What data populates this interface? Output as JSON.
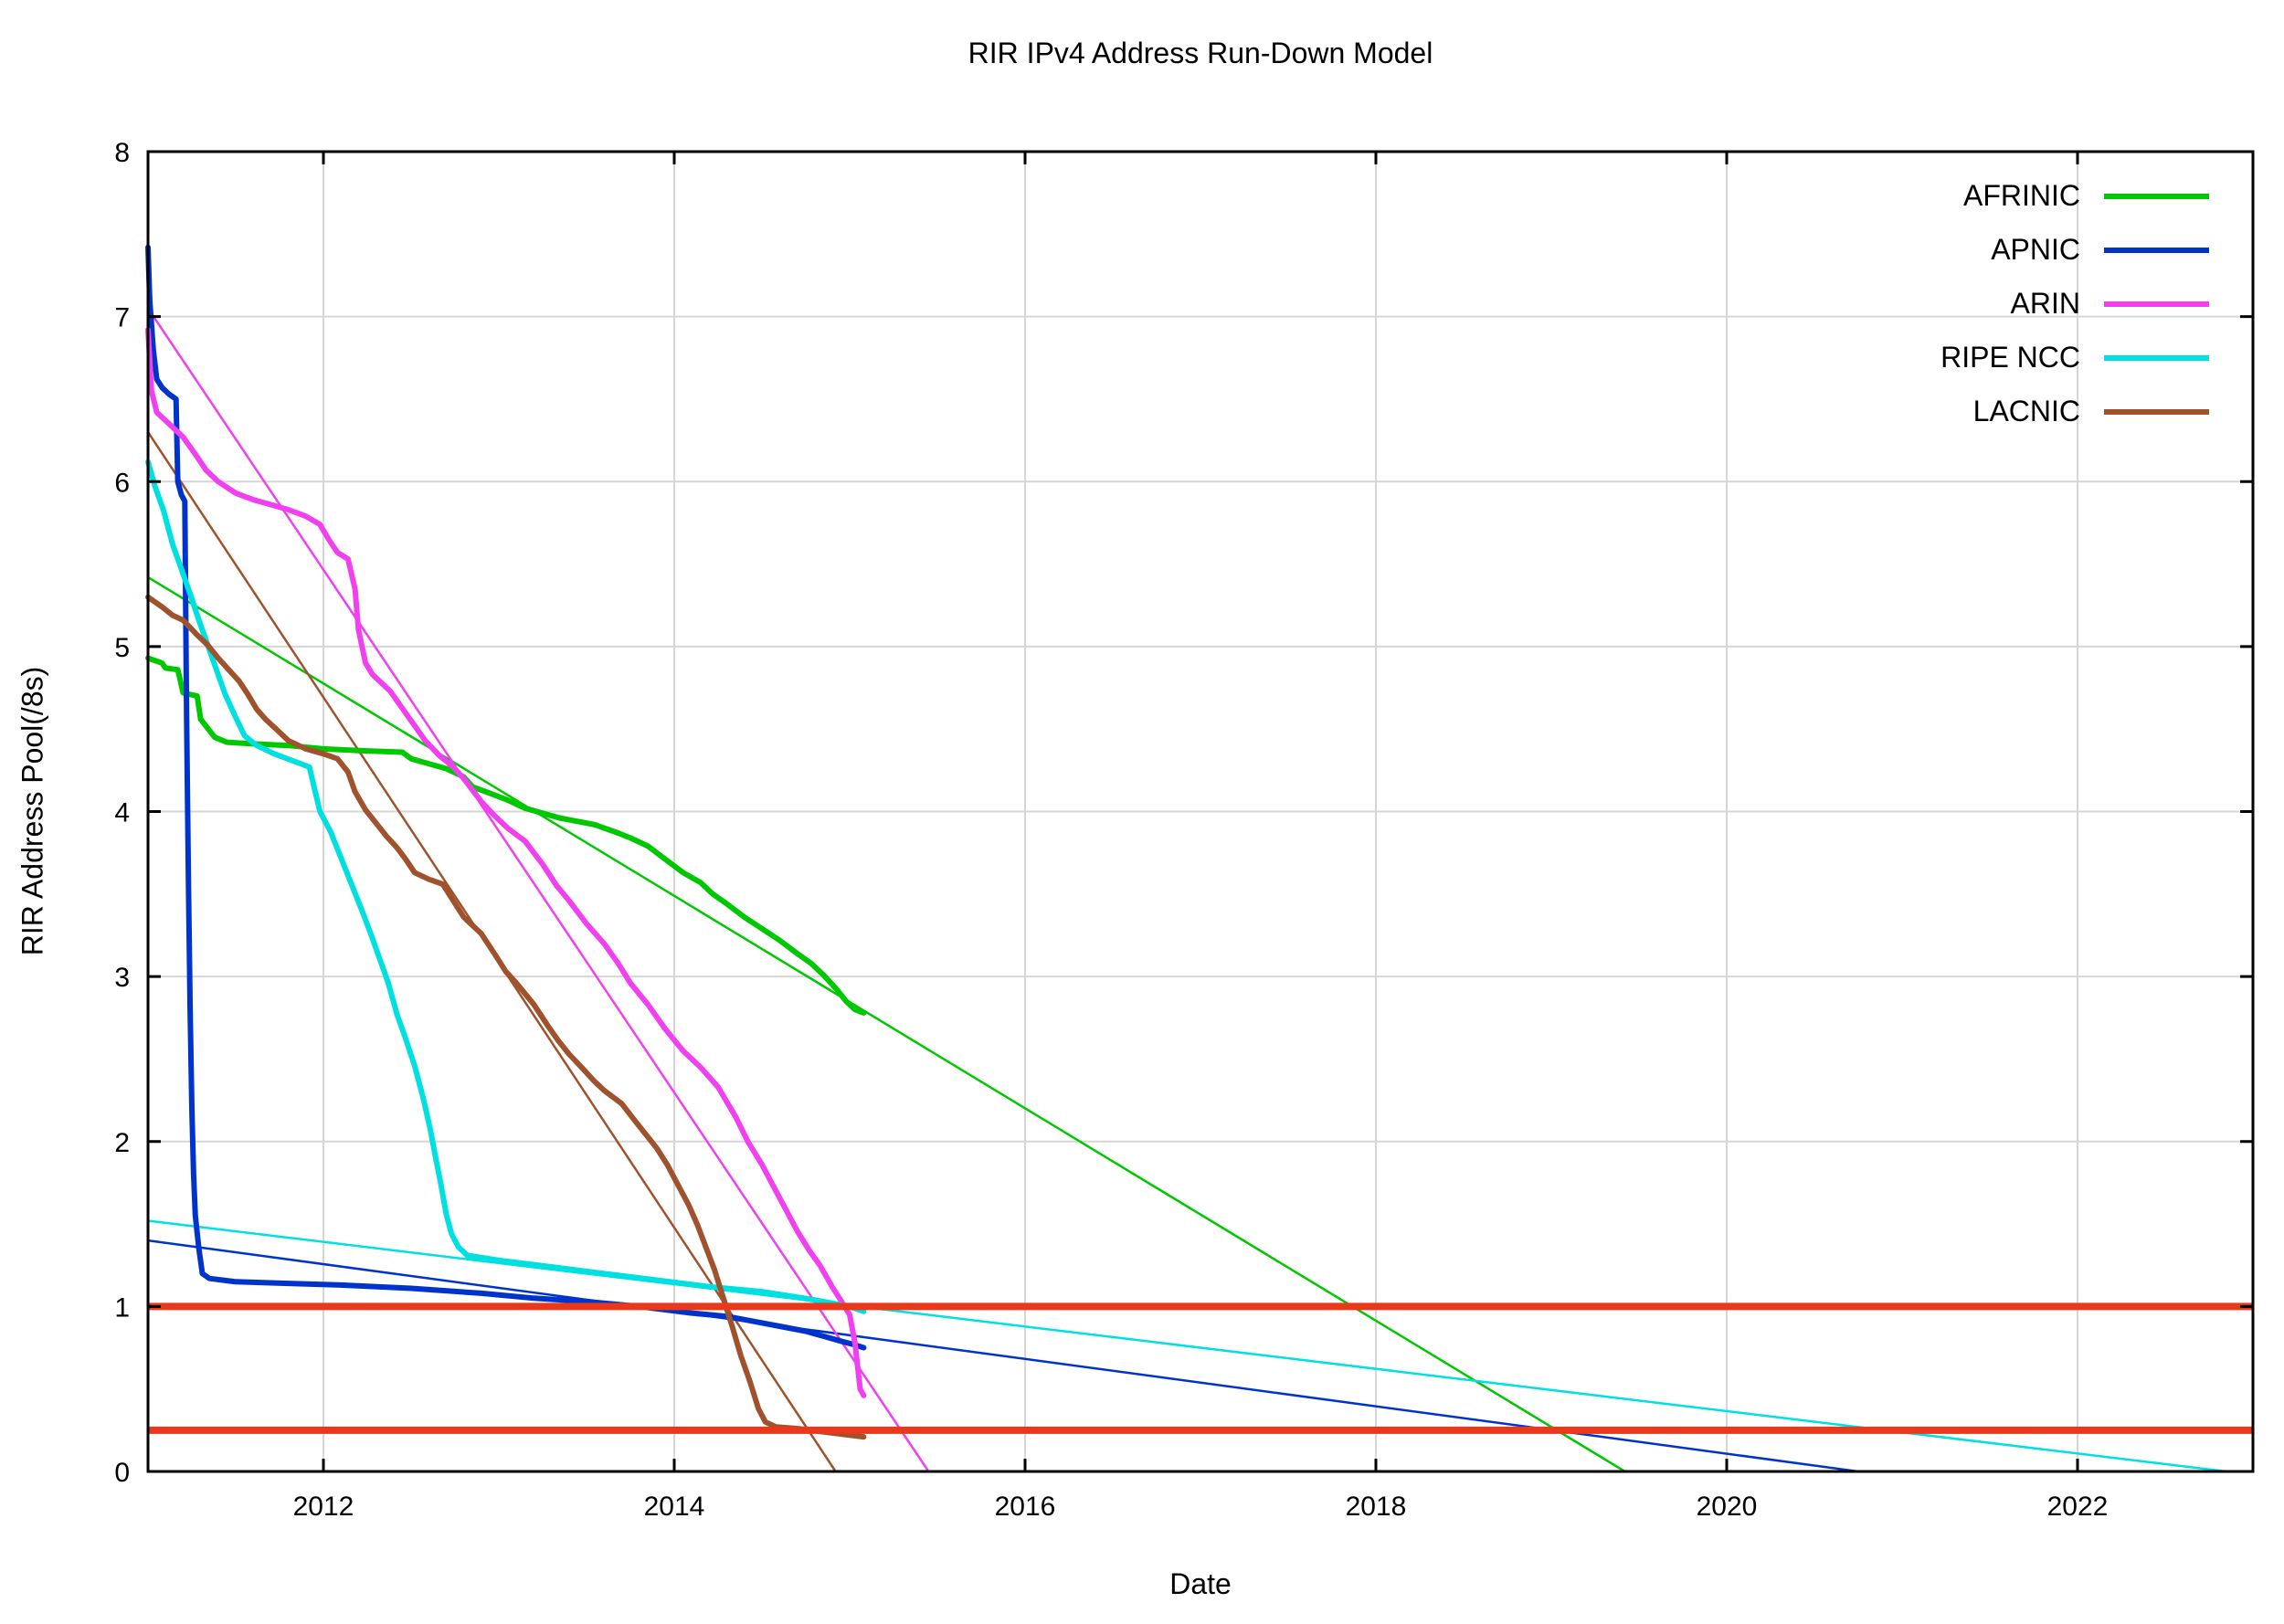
{
  "page": {
    "background": "#ffffff"
  },
  "chart_data": {
    "type": "line",
    "title": "RIR IPv4 Address Run-Down Model",
    "xlabel": "Date",
    "ylabel": "RIR Address Pool(/8s)",
    "xlim": [
      2011,
      2023
    ],
    "ylim": [
      0,
      8
    ],
    "xticks": [
      2012,
      2014,
      2016,
      2018,
      2020,
      2022
    ],
    "yticks": [
      0,
      1,
      2,
      3,
      4,
      5,
      6,
      7,
      8
    ],
    "grid": true,
    "grid_color": "#d6d6d6",
    "legend_position": "top-right",
    "legend": [
      "AFRINIC",
      "APNIC",
      "ARIN",
      "RIPE NCC",
      "LACNIC"
    ],
    "thresholds": [
      {
        "name": "exhaustion-threshold-1.00",
        "y": 1.0,
        "color": "#e8391d",
        "width": 8
      },
      {
        "name": "exhaustion-threshold-0.25",
        "y": 0.25,
        "color": "#e8391d",
        "width": 8
      }
    ],
    "series": [
      {
        "name": "AFRINIC model",
        "legend": false,
        "color": "#00c800",
        "width": 2.5,
        "points": [
          [
            2011.0,
            5.42
          ],
          [
            2019.42,
            0.0
          ]
        ]
      },
      {
        "name": "APNIC model",
        "legend": false,
        "color": "#0033cc",
        "width": 2.5,
        "points": [
          [
            2011.0,
            1.4
          ],
          [
            2020.75,
            0.0
          ]
        ]
      },
      {
        "name": "ARIN model",
        "legend": false,
        "color": "#f040f0",
        "width": 2.5,
        "points": [
          [
            2011.0,
            7.05
          ],
          [
            2015.45,
            0.0
          ]
        ]
      },
      {
        "name": "RIPE NCC model",
        "legend": false,
        "color": "#00e0e0",
        "width": 2.5,
        "points": [
          [
            2011.0,
            1.52
          ],
          [
            2022.85,
            0.0
          ]
        ]
      },
      {
        "name": "LACNIC model",
        "legend": false,
        "color": "#a0522d",
        "width": 2.5,
        "points": [
          [
            2011.0,
            6.3
          ],
          [
            2014.92,
            0.0
          ]
        ]
      },
      {
        "name": "AFRINIC",
        "legend": true,
        "color": "#00c800",
        "width": 6,
        "points": [
          [
            2011.0,
            4.93
          ],
          [
            2011.08,
            4.9
          ],
          [
            2011.1,
            4.87
          ],
          [
            2011.17,
            4.86
          ],
          [
            2011.2,
            4.72
          ],
          [
            2011.28,
            4.7
          ],
          [
            2011.3,
            4.56
          ],
          [
            2011.38,
            4.45
          ],
          [
            2011.45,
            4.42
          ],
          [
            2011.6,
            4.41
          ],
          [
            2011.8,
            4.4
          ],
          [
            2012.0,
            4.38
          ],
          [
            2012.2,
            4.37
          ],
          [
            2012.45,
            4.36
          ],
          [
            2012.5,
            4.32
          ],
          [
            2012.6,
            4.29
          ],
          [
            2012.7,
            4.26
          ],
          [
            2012.8,
            4.21
          ],
          [
            2012.85,
            4.15
          ],
          [
            2012.95,
            4.11
          ],
          [
            2013.05,
            4.07
          ],
          [
            2013.15,
            4.02
          ],
          [
            2013.25,
            3.99
          ],
          [
            2013.35,
            3.96
          ],
          [
            2013.45,
            3.94
          ],
          [
            2013.55,
            3.92
          ],
          [
            2013.6,
            3.9
          ],
          [
            2013.68,
            3.87
          ],
          [
            2013.75,
            3.84
          ],
          [
            2013.85,
            3.79
          ],
          [
            2013.95,
            3.71
          ],
          [
            2014.05,
            3.63
          ],
          [
            2014.15,
            3.57
          ],
          [
            2014.22,
            3.5
          ],
          [
            2014.3,
            3.44
          ],
          [
            2014.4,
            3.36
          ],
          [
            2014.5,
            3.29
          ],
          [
            2014.6,
            3.22
          ],
          [
            2014.7,
            3.14
          ],
          [
            2014.78,
            3.08
          ],
          [
            2014.85,
            3.01
          ],
          [
            2014.92,
            2.93
          ],
          [
            2014.98,
            2.85
          ],
          [
            2015.03,
            2.8
          ],
          [
            2015.08,
            2.78
          ]
        ]
      },
      {
        "name": "APNIC",
        "legend": true,
        "color": "#0033cc",
        "width": 6,
        "points": [
          [
            2011.0,
            7.42
          ],
          [
            2011.01,
            7.1
          ],
          [
            2011.03,
            6.8
          ],
          [
            2011.05,
            6.62
          ],
          [
            2011.08,
            6.57
          ],
          [
            2011.12,
            6.53
          ],
          [
            2011.16,
            6.5
          ],
          [
            2011.17,
            6.0
          ],
          [
            2011.19,
            5.92
          ],
          [
            2011.21,
            5.88
          ],
          [
            2011.22,
            4.6
          ],
          [
            2011.23,
            3.6
          ],
          [
            2011.24,
            2.8
          ],
          [
            2011.25,
            2.2
          ],
          [
            2011.26,
            1.8
          ],
          [
            2011.27,
            1.55
          ],
          [
            2011.29,
            1.35
          ],
          [
            2011.31,
            1.2
          ],
          [
            2011.35,
            1.17
          ],
          [
            2011.5,
            1.15
          ],
          [
            2011.8,
            1.14
          ],
          [
            2012.1,
            1.13
          ],
          [
            2012.5,
            1.11
          ],
          [
            2012.9,
            1.08
          ],
          [
            2013.2,
            1.05
          ],
          [
            2013.5,
            1.03
          ],
          [
            2013.8,
            1.0
          ],
          [
            2013.95,
            0.98
          ],
          [
            2014.1,
            0.96
          ],
          [
            2014.3,
            0.94
          ],
          [
            2014.45,
            0.91
          ],
          [
            2014.6,
            0.88
          ],
          [
            2014.75,
            0.85
          ],
          [
            2014.85,
            0.82
          ],
          [
            2014.95,
            0.79
          ],
          [
            2015.02,
            0.77
          ],
          [
            2015.08,
            0.75
          ]
        ]
      },
      {
        "name": "ARIN",
        "legend": true,
        "color": "#f040f0",
        "width": 6,
        "points": [
          [
            2011.0,
            6.92
          ],
          [
            2011.02,
            6.55
          ],
          [
            2011.05,
            6.42
          ],
          [
            2011.1,
            6.37
          ],
          [
            2011.15,
            6.32
          ],
          [
            2011.2,
            6.27
          ],
          [
            2011.28,
            6.15
          ],
          [
            2011.33,
            6.07
          ],
          [
            2011.4,
            6.0
          ],
          [
            2011.5,
            5.93
          ],
          [
            2011.6,
            5.89
          ],
          [
            2011.7,
            5.86
          ],
          [
            2011.8,
            5.83
          ],
          [
            2011.9,
            5.79
          ],
          [
            2011.98,
            5.74
          ],
          [
            2012.03,
            5.65
          ],
          [
            2012.08,
            5.57
          ],
          [
            2012.14,
            5.53
          ],
          [
            2012.18,
            5.35
          ],
          [
            2012.2,
            5.1
          ],
          [
            2012.24,
            4.9
          ],
          [
            2012.28,
            4.83
          ],
          [
            2012.38,
            4.73
          ],
          [
            2012.48,
            4.58
          ],
          [
            2012.58,
            4.43
          ],
          [
            2012.66,
            4.34
          ],
          [
            2012.74,
            4.27
          ],
          [
            2012.8,
            4.2
          ],
          [
            2012.9,
            4.06
          ],
          [
            2012.98,
            3.97
          ],
          [
            2013.05,
            3.9
          ],
          [
            2013.15,
            3.82
          ],
          [
            2013.25,
            3.68
          ],
          [
            2013.33,
            3.55
          ],
          [
            2013.4,
            3.46
          ],
          [
            2013.5,
            3.32
          ],
          [
            2013.6,
            3.2
          ],
          [
            2013.68,
            3.08
          ],
          [
            2013.75,
            2.96
          ],
          [
            2013.85,
            2.83
          ],
          [
            2013.95,
            2.68
          ],
          [
            2014.05,
            2.55
          ],
          [
            2014.15,
            2.45
          ],
          [
            2014.25,
            2.33
          ],
          [
            2014.35,
            2.15
          ],
          [
            2014.42,
            2.0
          ],
          [
            2014.5,
            1.86
          ],
          [
            2014.57,
            1.72
          ],
          [
            2014.64,
            1.58
          ],
          [
            2014.7,
            1.46
          ],
          [
            2014.77,
            1.34
          ],
          [
            2014.83,
            1.25
          ],
          [
            2014.9,
            1.12
          ],
          [
            2014.96,
            1.02
          ],
          [
            2015.0,
            0.95
          ],
          [
            2015.03,
            0.78
          ],
          [
            2015.06,
            0.5
          ],
          [
            2015.08,
            0.46
          ]
        ]
      },
      {
        "name": "RIPE NCC",
        "legend": true,
        "color": "#00e0e0",
        "width": 6,
        "points": [
          [
            2011.0,
            6.12
          ],
          [
            2011.04,
            5.97
          ],
          [
            2011.09,
            5.82
          ],
          [
            2011.14,
            5.62
          ],
          [
            2011.19,
            5.47
          ],
          [
            2011.24,
            5.32
          ],
          [
            2011.29,
            5.16
          ],
          [
            2011.34,
            5.01
          ],
          [
            2011.39,
            4.86
          ],
          [
            2011.44,
            4.71
          ],
          [
            2011.5,
            4.57
          ],
          [
            2011.55,
            4.46
          ],
          [
            2011.62,
            4.4
          ],
          [
            2011.72,
            4.35
          ],
          [
            2011.82,
            4.31
          ],
          [
            2011.92,
            4.27
          ],
          [
            2011.98,
            4.0
          ],
          [
            2012.04,
            3.88
          ],
          [
            2012.1,
            3.72
          ],
          [
            2012.16,
            3.56
          ],
          [
            2012.22,
            3.4
          ],
          [
            2012.27,
            3.26
          ],
          [
            2012.32,
            3.11
          ],
          [
            2012.37,
            2.96
          ],
          [
            2012.42,
            2.77
          ],
          [
            2012.47,
            2.62
          ],
          [
            2012.52,
            2.46
          ],
          [
            2012.57,
            2.26
          ],
          [
            2012.61,
            2.07
          ],
          [
            2012.64,
            1.9
          ],
          [
            2012.67,
            1.74
          ],
          [
            2012.7,
            1.56
          ],
          [
            2012.73,
            1.44
          ],
          [
            2012.77,
            1.36
          ],
          [
            2012.82,
            1.31
          ],
          [
            2013.0,
            1.28
          ],
          [
            2013.3,
            1.24
          ],
          [
            2013.6,
            1.2
          ],
          [
            2013.9,
            1.16
          ],
          [
            2014.2,
            1.12
          ],
          [
            2014.5,
            1.09
          ],
          [
            2014.8,
            1.04
          ],
          [
            2015.0,
            1.0
          ],
          [
            2015.08,
            0.97
          ]
        ]
      },
      {
        "name": "LACNIC",
        "legend": true,
        "color": "#a0522d",
        "width": 6,
        "points": [
          [
            2011.0,
            5.3
          ],
          [
            2011.08,
            5.24
          ],
          [
            2011.14,
            5.19
          ],
          [
            2011.2,
            5.16
          ],
          [
            2011.28,
            5.07
          ],
          [
            2011.34,
            5.01
          ],
          [
            2011.4,
            4.93
          ],
          [
            2011.46,
            4.86
          ],
          [
            2011.52,
            4.79
          ],
          [
            2011.57,
            4.71
          ],
          [
            2011.62,
            4.62
          ],
          [
            2011.67,
            4.56
          ],
          [
            2011.73,
            4.5
          ],
          [
            2011.8,
            4.43
          ],
          [
            2011.9,
            4.38
          ],
          [
            2012.0,
            4.35
          ],
          [
            2012.08,
            4.32
          ],
          [
            2012.14,
            4.24
          ],
          [
            2012.18,
            4.12
          ],
          [
            2012.24,
            4.01
          ],
          [
            2012.3,
            3.93
          ],
          [
            2012.36,
            3.85
          ],
          [
            2012.42,
            3.78
          ],
          [
            2012.47,
            3.71
          ],
          [
            2012.52,
            3.63
          ],
          [
            2012.6,
            3.59
          ],
          [
            2012.68,
            3.56
          ],
          [
            2012.74,
            3.46
          ],
          [
            2012.8,
            3.36
          ],
          [
            2012.9,
            3.26
          ],
          [
            2012.98,
            3.13
          ],
          [
            2013.04,
            3.03
          ],
          [
            2013.1,
            2.96
          ],
          [
            2013.2,
            2.83
          ],
          [
            2013.28,
            2.7
          ],
          [
            2013.34,
            2.61
          ],
          [
            2013.4,
            2.53
          ],
          [
            2013.48,
            2.44
          ],
          [
            2013.54,
            2.37
          ],
          [
            2013.6,
            2.31
          ],
          [
            2013.7,
            2.23
          ],
          [
            2013.78,
            2.12
          ],
          [
            2013.84,
            2.04
          ],
          [
            2013.9,
            1.96
          ],
          [
            2013.96,
            1.86
          ],
          [
            2014.02,
            1.74
          ],
          [
            2014.08,
            1.62
          ],
          [
            2014.13,
            1.5
          ],
          [
            2014.18,
            1.36
          ],
          [
            2014.23,
            1.22
          ],
          [
            2014.28,
            1.05
          ],
          [
            2014.33,
            0.88
          ],
          [
            2014.38,
            0.7
          ],
          [
            2014.43,
            0.55
          ],
          [
            2014.48,
            0.38
          ],
          [
            2014.52,
            0.3
          ],
          [
            2014.58,
            0.27
          ],
          [
            2014.7,
            0.26
          ],
          [
            2014.85,
            0.24
          ],
          [
            2015.0,
            0.22
          ],
          [
            2015.08,
            0.21
          ]
        ]
      }
    ]
  }
}
